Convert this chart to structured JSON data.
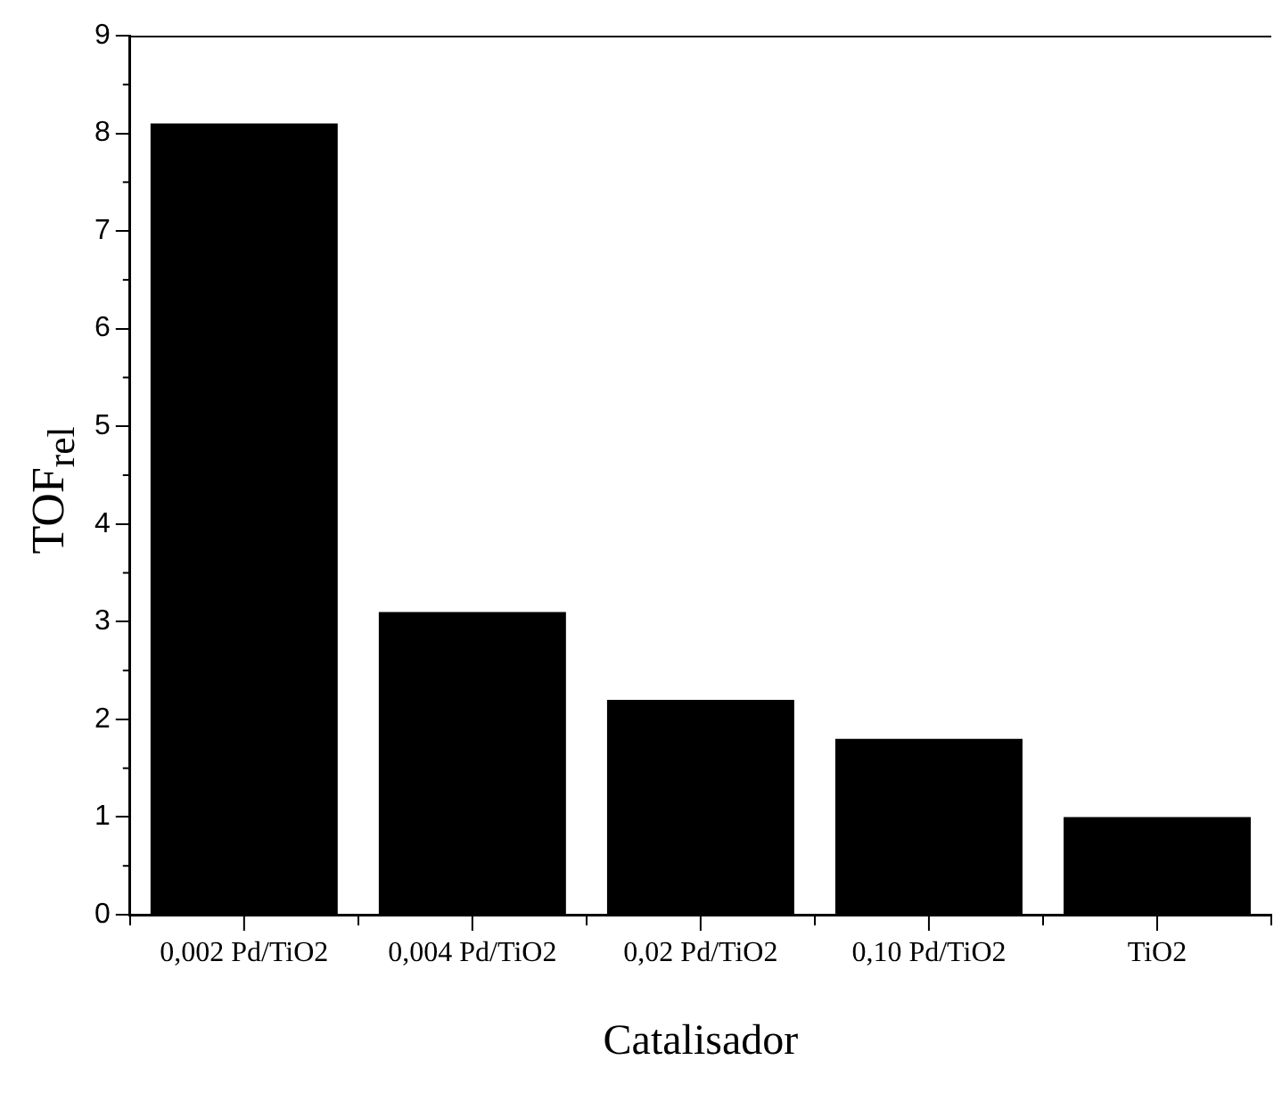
{
  "chart_data": {
    "type": "bar",
    "xlabel": "Catalisador",
    "ylabel": "TOF$_{rel}$",
    "categories": [
      "0,002 Pd/TiO2",
      "0,004 Pd/TiO2",
      "0,02 Pd/TiO2",
      "0,10 Pd/TiO2",
      "TiO2"
    ],
    "values": [
      8.1,
      3.1,
      2.2,
      1.8,
      1.0
    ],
    "color": "#000000",
    "ylim": [
      0,
      9
    ],
    "yticks": [
      0,
      1,
      2,
      3,
      4,
      5,
      6,
      7,
      8,
      9
    ],
    "grid": false,
    "legend": false
  }
}
